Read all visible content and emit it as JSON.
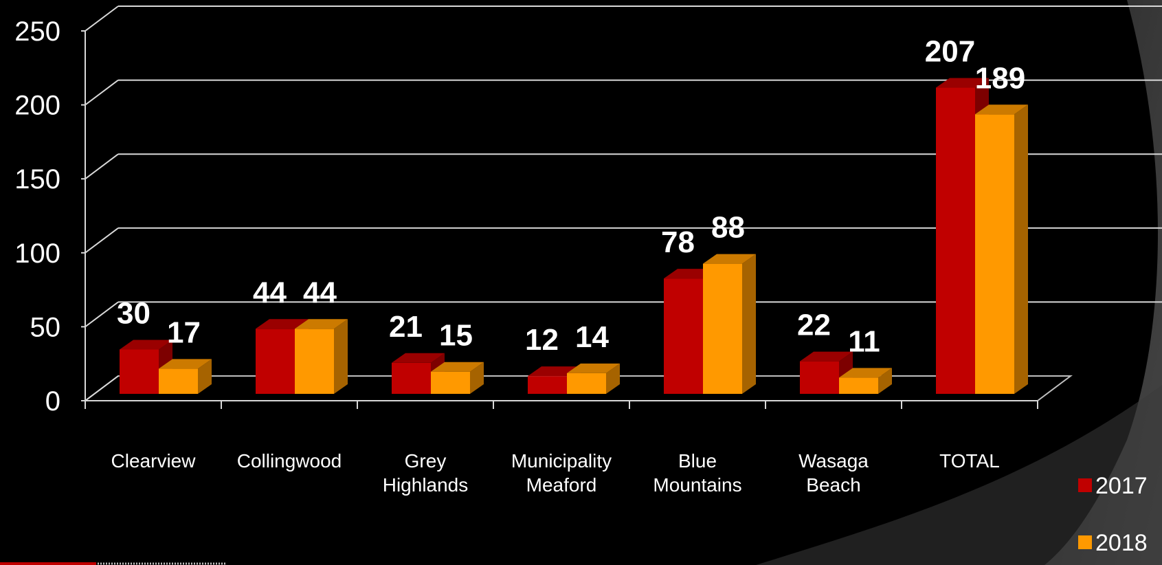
{
  "chart_data": {
    "type": "bar",
    "style": "3d-clustered-column",
    "categories": [
      "Clearview",
      "Collingwood",
      "Grey Highlands",
      "Municipality Meaford",
      "Blue Mountains",
      "Wasaga Beach",
      "TOTAL"
    ],
    "category_lines": [
      [
        "Clearview"
      ],
      [
        "Collingwood"
      ],
      [
        "Grey",
        "Highlands"
      ],
      [
        "Municipality",
        "Meaford"
      ],
      [
        "Blue",
        "Mountains"
      ],
      [
        "Wasaga",
        "Beach"
      ],
      [
        "TOTAL"
      ]
    ],
    "series": [
      {
        "name": "2017",
        "values": [
          30,
          44,
          21,
          12,
          78,
          22,
          207
        ],
        "color": "#c00000"
      },
      {
        "name": "2018",
        "values": [
          17,
          44,
          15,
          14,
          88,
          11,
          189
        ],
        "color": "#ff9900"
      }
    ],
    "ylim": [
      0,
      250
    ],
    "yticks": [
      "0",
      "50",
      "100",
      "150",
      "200",
      "250"
    ],
    "title": "",
    "xlabel": "",
    "ylabel": "",
    "grid": true,
    "legend_position": "right",
    "data_labels": true,
    "background": "#000000",
    "text_color": "#ffffff"
  }
}
